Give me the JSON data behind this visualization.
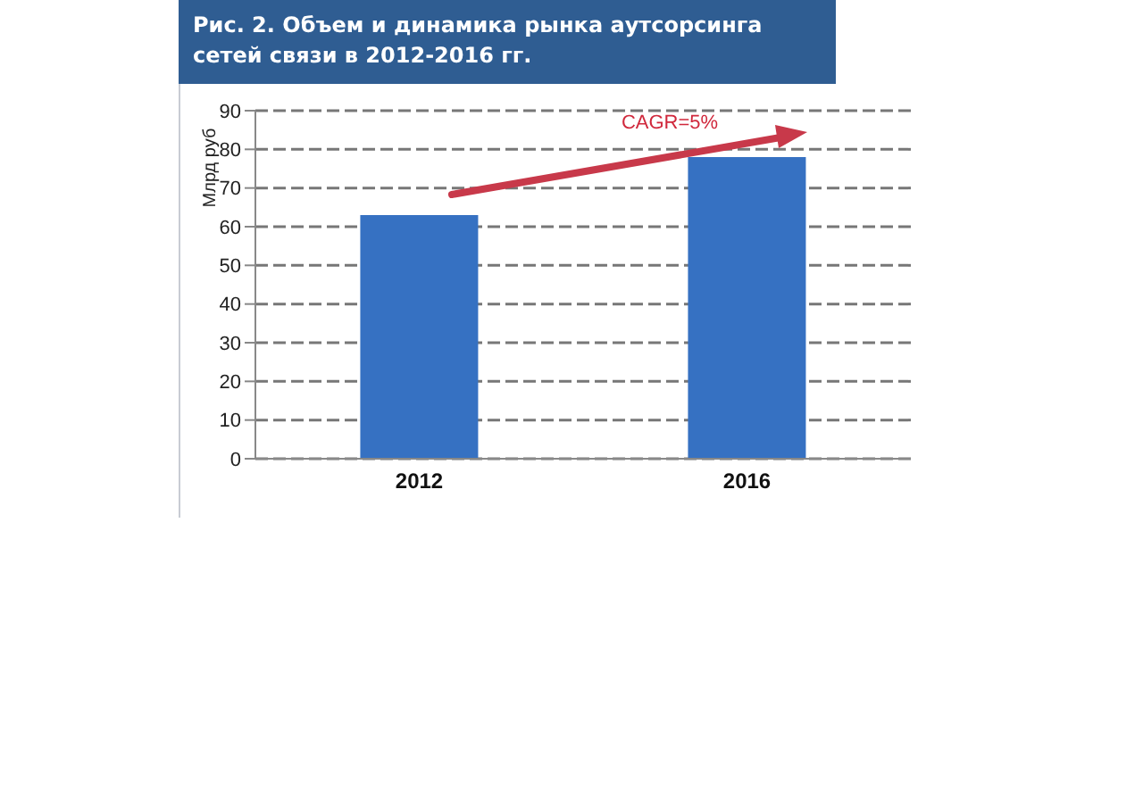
{
  "chart_data": {
    "type": "bar",
    "title": "Рис. 2. Объем и динамика рынка аутсорсинга сетей связи в 2012-2016 гг.",
    "ylabel": "Млрд руб",
    "categories": [
      "2012",
      "2016"
    ],
    "values": [
      63,
      78
    ],
    "color": "#3671c2",
    "ylim": [
      0,
      90
    ],
    "yticks": [
      0,
      10,
      20,
      30,
      40,
      50,
      60,
      70,
      80,
      90
    ],
    "grid": "y",
    "annotations": [
      "CAGR=5%"
    ]
  }
}
